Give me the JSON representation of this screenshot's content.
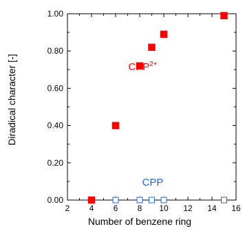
{
  "chart_data": {
    "type": "scatter",
    "title": "",
    "xlabel": "Number of benzene ring",
    "ylabel": "Diradical character [-]",
    "xlim": [
      2,
      16
    ],
    "ylim": [
      0,
      1
    ],
    "grid": false,
    "legend": "none",
    "x_ticks": [
      {
        "value": 2,
        "label": "2"
      },
      {
        "value": 4,
        "label": "4"
      },
      {
        "value": 6,
        "label": "6"
      },
      {
        "value": 8,
        "label": "8"
      },
      {
        "value": 10,
        "label": "10"
      },
      {
        "value": 12,
        "label": "12"
      },
      {
        "value": 14,
        "label": "14"
      },
      {
        "value": 16,
        "label": "16"
      }
    ],
    "y_ticks": [
      {
        "value": 0,
        "label": "0.00"
      },
      {
        "value": 0.2,
        "label": "0.20"
      },
      {
        "value": 0.4,
        "label": "0.40"
      },
      {
        "value": 0.6,
        "label": "0.60"
      },
      {
        "value": 0.8,
        "label": "0.80"
      },
      {
        "value": 1.0,
        "label": "1.00"
      }
    ],
    "series": [
      {
        "name": "CPP2+",
        "color": "#ff0000",
        "marker": "filled-square",
        "points": [
          {
            "x": 4,
            "y": 0.0
          },
          {
            "x": 6,
            "y": 0.4
          },
          {
            "x": 8,
            "y": 0.72
          },
          {
            "x": 9,
            "y": 0.82
          },
          {
            "x": 10,
            "y": 0.89
          },
          {
            "x": 15,
            "y": 0.99
          }
        ]
      },
      {
        "name": "CPP",
        "color": "#2266dd",
        "marker": "open-square",
        "points": [
          {
            "x": 4,
            "y": 0.0
          },
          {
            "x": 6,
            "y": 0.0
          },
          {
            "x": 8,
            "y": 0.0
          },
          {
            "x": 9,
            "y": 0.0
          },
          {
            "x": 10,
            "y": 0.0
          },
          {
            "x": 15,
            "y": 0.0
          }
        ]
      }
    ],
    "annotations": [
      {
        "text": "CPP",
        "superscript": "2+",
        "x": 7.05,
        "y": 0.72,
        "color": "#ff0000"
      },
      {
        "text": "CPP",
        "superscript": "",
        "x": 8.2,
        "y": 0.1,
        "color": "#2266dd"
      }
    ]
  }
}
